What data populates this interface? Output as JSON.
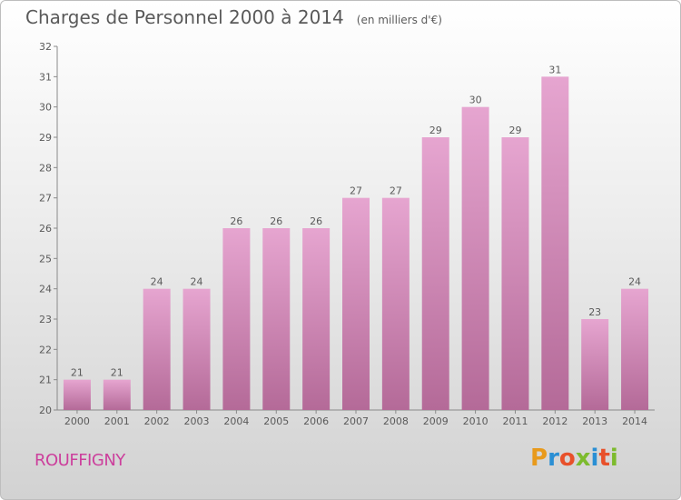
{
  "title": "Charges de Personnel 2000 à 2014",
  "subtitle": "(en milliers d'€)",
  "commune": "ROUFFIGNY",
  "logo": {
    "letters": [
      "P",
      "r",
      "o",
      "x",
      "i",
      "t",
      "i"
    ],
    "colors": [
      "#e89a1c",
      "#2a8fd4",
      "#e8502a",
      "#7dbb2e",
      "#2a8fd4",
      "#e8502a",
      "#7dbb2e"
    ]
  },
  "colors": {
    "bar_top": "#e6a5d0",
    "bar_bottom": "#b46a98",
    "text": "#5a5a5a",
    "commune": "#cc3f9c"
  },
  "chart_data": {
    "type": "bar",
    "title": "Charges de Personnel 2000 à 2014",
    "subtitle": "(en milliers d'€)",
    "categories": [
      "2000",
      "2001",
      "2002",
      "2003",
      "2004",
      "2005",
      "2006",
      "2007",
      "2008",
      "2009",
      "2010",
      "2011",
      "2012",
      "2013",
      "2014"
    ],
    "values": [
      21,
      21,
      24,
      24,
      26,
      26,
      26,
      27,
      27,
      29,
      30,
      29,
      31,
      23,
      24
    ],
    "ylim": [
      20,
      32
    ],
    "yticks": [
      20,
      21,
      22,
      23,
      24,
      25,
      26,
      27,
      28,
      29,
      30,
      31,
      32
    ],
    "grid": false,
    "legend": "none"
  }
}
